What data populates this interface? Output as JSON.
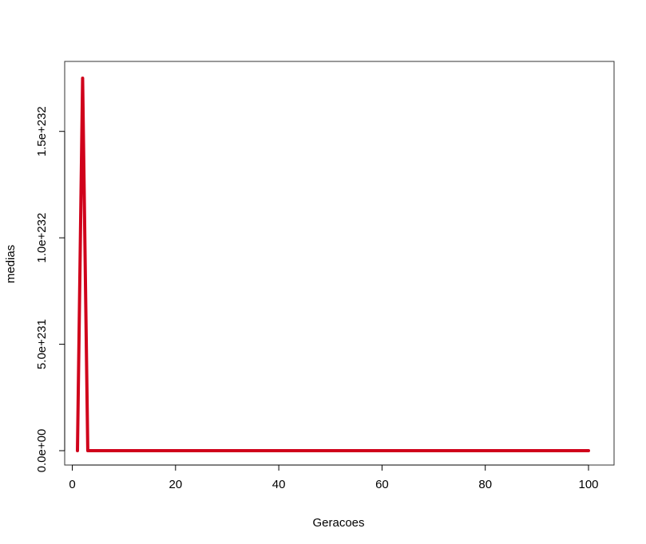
{
  "chart_data": {
    "type": "line",
    "title": "",
    "xlabel": "Geracoes",
    "ylabel": "medias",
    "xlim": [
      1,
      100
    ],
    "ylim": [
      0,
      1.75e+232
    ],
    "x_ticks": [
      0,
      20,
      40,
      60,
      80,
      100
    ],
    "x_tick_labels": [
      "0",
      "20",
      "40",
      "60",
      "80",
      "100"
    ],
    "y_ticks": [
      0,
      5e+231,
      1e+232,
      1.5e+232
    ],
    "y_tick_labels": [
      "0.0e+00",
      "5.0e+231",
      "1.0e+232",
      "1.5e+232"
    ],
    "grid": false,
    "legend": "none",
    "series": [
      {
        "color": "#d0021b",
        "x": [
          1,
          2,
          3,
          4,
          5,
          10,
          20,
          30,
          40,
          50,
          60,
          70,
          80,
          90,
          100
        ],
        "y": [
          0,
          1.75e+232,
          0,
          0,
          0,
          0,
          0,
          0,
          0,
          0,
          0,
          0,
          0,
          0,
          0
        ]
      }
    ]
  }
}
